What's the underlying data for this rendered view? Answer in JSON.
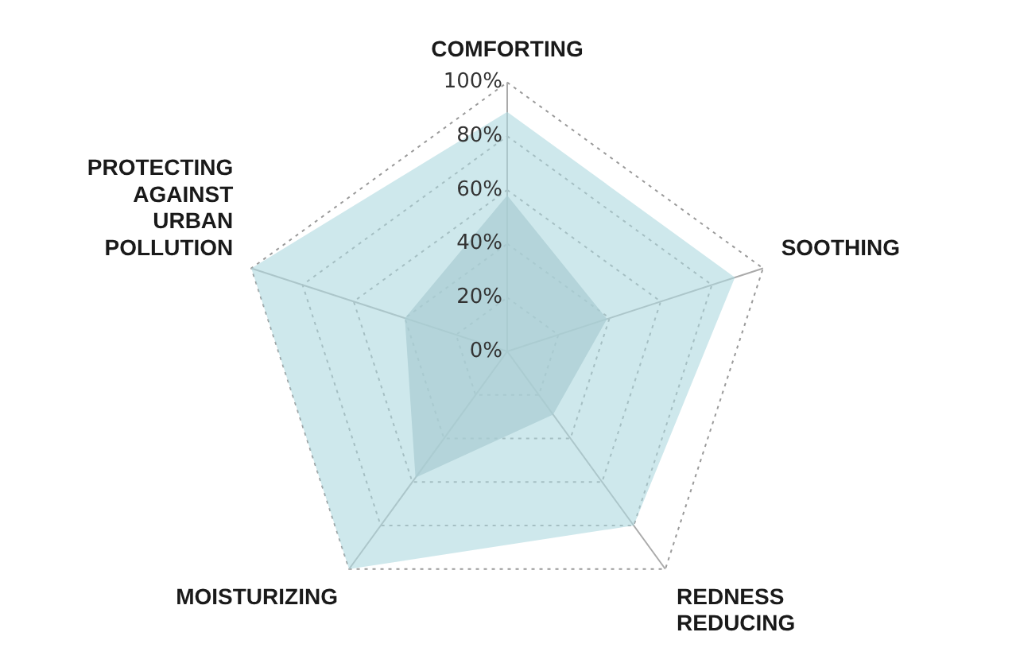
{
  "chart_data": {
    "type": "radar",
    "categories": [
      "COMFORTING",
      "SOOTHING",
      "REDNESS REDUCING",
      "MOISTURIZING",
      "PROTECTING AGAINST URBAN POLLUTION"
    ],
    "series": [
      {
        "color": "#add8e0",
        "values": [
          89,
          89,
          80,
          100,
          100
        ]
      },
      {
        "color": "#a7bcc1",
        "values": [
          58,
          39,
          29,
          58,
          40
        ]
      }
    ],
    "ylim": [
      0,
      100
    ],
    "yticks": [
      {
        "value": 0,
        "label": "0%"
      },
      {
        "value": 20,
        "label": "20%"
      },
      {
        "value": 40,
        "label": "40%"
      },
      {
        "value": 60,
        "label": "60%"
      },
      {
        "value": 80,
        "label": "80%"
      },
      {
        "value": 100,
        "label": "100%"
      }
    ],
    "grid": true,
    "legend": false
  }
}
